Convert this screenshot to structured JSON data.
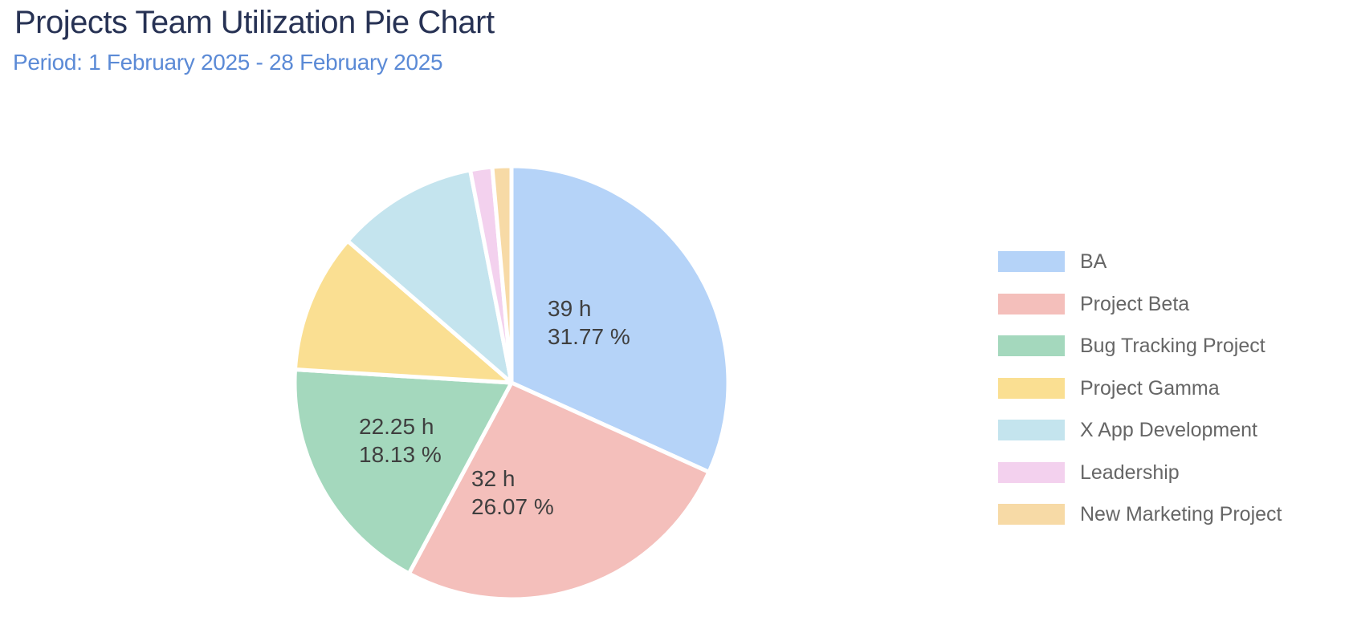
{
  "page": {
    "title": "Projects Team Utilization Pie Chart",
    "period": "Period: 1 February 2025 - 28 February 2025"
  },
  "colors": {
    "background": "#ffffff",
    "title_text": "#273254",
    "period_text": "#5b8ad6",
    "legend_text": "#666666",
    "slice_label_text": "#3f3f3f",
    "slice_border": "#ffffff"
  },
  "chart_data": {
    "type": "pie",
    "title": "Projects Team Utilization Pie Chart",
    "subtitle": "Period: 1 February 2025 - 28 February 2025",
    "unit": "h",
    "start_angle_deg": 0,
    "direction": "clockwise",
    "legend_position": "right",
    "slices": [
      {
        "name": "BA",
        "color": "#b5d3f8",
        "hours": 39,
        "pct": 31.77,
        "labeled": true,
        "value_label": "39 h",
        "pct_label": "31.77 %"
      },
      {
        "name": "Project Beta",
        "color": "#f4bfbb",
        "hours": 32,
        "pct": 26.07,
        "labeled": true,
        "value_label": "32 h",
        "pct_label": "26.07 %"
      },
      {
        "name": "Bug Tracking Project",
        "color": "#a4d8bd",
        "hours": 22.25,
        "pct": 18.13,
        "labeled": true,
        "value_label": "22.25 h",
        "pct_label": "18.13 %"
      },
      {
        "name": "Project Gamma",
        "color": "#fadf92",
        "pct": 10.39,
        "labeled": false,
        "pct_estimated": true
      },
      {
        "name": "X App Development",
        "color": "#c4e4ee",
        "pct": 10.59,
        "labeled": false,
        "pct_estimated": true
      },
      {
        "name": "Leadership",
        "color": "#f3d1ee",
        "pct": 1.63,
        "labeled": false,
        "pct_estimated": true
      },
      {
        "name": "New Marketing Project",
        "color": "#f7daa6",
        "pct": 1.42,
        "labeled": false,
        "pct_estimated": true
      }
    ]
  }
}
